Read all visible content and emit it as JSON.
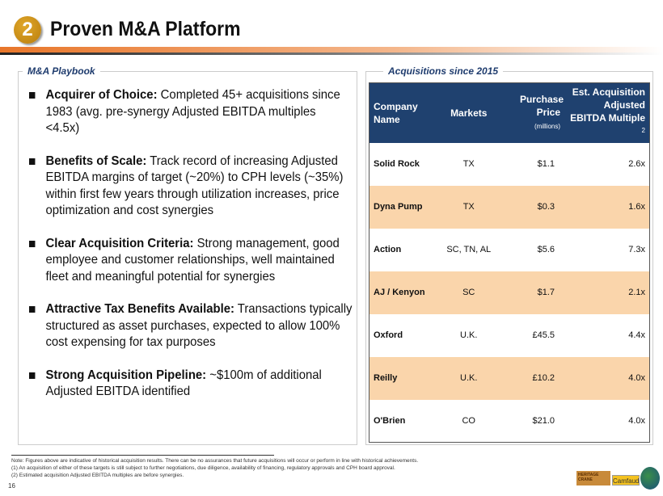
{
  "header": {
    "number": "2",
    "title": "Proven M&A Platform"
  },
  "left_panel": {
    "title": "M&A Playbook",
    "bullets": [
      {
        "bold": "Acquirer of Choice:",
        "text": " Completed 45+ acquisitions since 1983 (avg. pre-synergy Adjusted EBITDA multiples <4.5x)"
      },
      {
        "bold": "Benefits of Scale:",
        "text": " Track record of increasing Adjusted EBITDA margins of target (~20%) to CPH levels (~35%) within first few years through utilization increases, price optimization and cost synergies"
      },
      {
        "bold": "Clear Acquisition Criteria:",
        "text": " Strong management, good employee and customer relationships, well maintained fleet and meaningful potential for synergies"
      },
      {
        "bold": "Attractive Tax Benefits Available:",
        "text": " Transactions typically structured as asset purchases, expected to allow 100% cost expensing for tax purposes"
      },
      {
        "bold": "Strong Acquisition Pipeline:",
        "text": " ~$100m of additional Adjusted EBITDA identified"
      }
    ]
  },
  "right_panel": {
    "title": "Acquisitions since 2015",
    "headers": {
      "company": "Company Name",
      "markets": "Markets",
      "price": "Purchase Price",
      "price_unit": "(millions)",
      "multiple": "Est. Acquisition Adjusted EBITDA Multiple",
      "multiple_sup": "2"
    },
    "rows": [
      {
        "company": "Solid Rock",
        "markets": "TX",
        "price": "$1.1",
        "multiple": "2.6x"
      },
      {
        "company": "Dyna Pump",
        "markets": "TX",
        "price": "$0.3",
        "multiple": "1.6x"
      },
      {
        "company": "Action",
        "markets": "SC, TN, AL",
        "price": "$5.6",
        "multiple": "7.3x"
      },
      {
        "company": "AJ / Kenyon",
        "markets": "SC",
        "price": "$1.7",
        "multiple": "2.1x"
      },
      {
        "company": "Oxford",
        "markets": "U.K.",
        "price": "£45.5",
        "multiple": "4.4x"
      },
      {
        "company": "Reilly",
        "markets": "U.K.",
        "price": "£10.2",
        "multiple": "4.0x"
      },
      {
        "company": "O'Brien",
        "markets": "CO",
        "price": "$21.0",
        "multiple": "4.0x"
      }
    ]
  },
  "notes": [
    "Note: Figures above are indicative of historical acquisition results. There can be no assurances that future acquisitions will occur or perform in line with historical achievements.",
    "(1) An acquisition of either of these targets is still subject to further negotiations, due diligence, availability of financing, regulatory approvals and CPH board approval.",
    "(2) Estimated acquisition Adjusted EBITDA multiples are before synergies."
  ],
  "page_number": "16",
  "logos": [
    "Heritage-Crane",
    "Camfaud",
    "globe-logo"
  ],
  "colors": {
    "header_blue": "#1f416f",
    "row_alt": "#fad5ab",
    "accent_orange": "#e8762a",
    "badge_gold": "#c98d14"
  }
}
